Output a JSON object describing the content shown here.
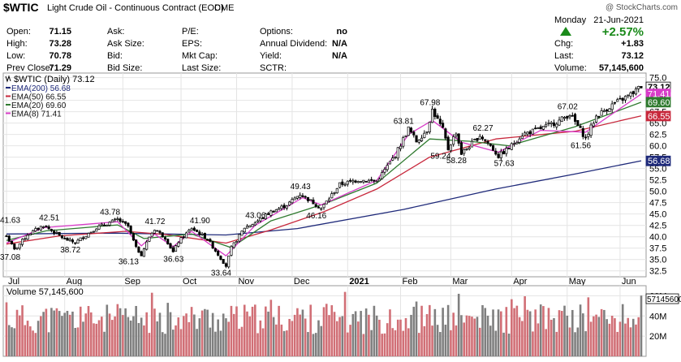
{
  "header": {
    "symbol": "$WTIC",
    "name": "Light Crude Oil - Continuous Contract (EOD)",
    "exchange": "CME",
    "copyright": "@ StockCharts.com",
    "day": "Monday",
    "date": "21-Jun-2021",
    "change_pct": "+2.57%",
    "up_color": "#1a8a1a"
  },
  "quote": {
    "col1": [
      {
        "label": "Open:",
        "value": "71.15"
      },
      {
        "label": "High:",
        "value": "73.28"
      },
      {
        "label": "Low:",
        "value": "70.78"
      },
      {
        "label": "Prev Close:",
        "value": "71.29"
      }
    ],
    "col2": [
      {
        "label": "Ask:",
        "value": ""
      },
      {
        "label": "Ask Size:",
        "value": ""
      },
      {
        "label": "Bid:",
        "value": ""
      },
      {
        "label": "Bid Size:",
        "value": ""
      }
    ],
    "col3": [
      {
        "label": "P/E:",
        "value": ""
      },
      {
        "label": "EPS:",
        "value": ""
      },
      {
        "label": "Mkt Cap:",
        "value": ""
      },
      {
        "label": "Last Size:",
        "value": ""
      }
    ],
    "col4": [
      {
        "label": "Options:",
        "value": "no"
      },
      {
        "label": "Annual Dividend:",
        "value": "N/A"
      },
      {
        "label": "Yield:",
        "value": "N/A"
      },
      {
        "label": "SCTR:",
        "value": ""
      }
    ],
    "right": [
      {
        "label": "Chg:",
        "value": "+1.83"
      },
      {
        "label": "Last:",
        "value": "73.12"
      },
      {
        "label": "Volume:",
        "value": "57,145,600"
      }
    ]
  },
  "chart_data": {
    "type": "candlestick",
    "title": "$WTIC (Daily) 73.12",
    "x_months": [
      "Jul",
      "Aug",
      "Sep",
      "Oct",
      "Nov",
      "Dec",
      "2021",
      "Feb",
      "Mar",
      "Apr",
      "May",
      "Jun"
    ],
    "y_ticks": [
      "75.0",
      "72.5",
      "70.0",
      "67.5",
      "65.0",
      "62.5",
      "60.0",
      "57.5",
      "55.0",
      "52.5",
      "50.0",
      "47.5",
      "45.0",
      "42.5",
      "40.0",
      "37.5",
      "35.0",
      "32.5"
    ],
    "ylim": [
      31.2,
      76.0
    ],
    "legend": [
      {
        "label": "EMA(200) 56.68",
        "color": "#1f2a7a"
      },
      {
        "label": "EMA(50) 66.55",
        "color": "#c8283c"
      },
      {
        "label": "EMA(20) 69.60",
        "color": "#2f7a2f"
      },
      {
        "label": "EMA(8) 71.41",
        "color": "#d83cc8"
      }
    ],
    "right_labels": [
      {
        "value": 73.12,
        "text": "73.12",
        "bg": "#ffffff",
        "fg": "#000000",
        "bold": true
      },
      {
        "value": 71.41,
        "text": "71.41",
        "bg": "#d83cc8",
        "fg": "#ffffff"
      },
      {
        "value": 69.6,
        "text": "69.60",
        "bg": "#2f7a2f",
        "fg": "#ffffff"
      },
      {
        "value": 66.55,
        "text": "66.55",
        "bg": "#c8283c",
        "fg": "#ffffff"
      },
      {
        "value": 56.68,
        "text": "56.68",
        "bg": "#1f2a7a",
        "fg": "#ffffff"
      }
    ],
    "price_keypoints": [
      {
        "t": 0,
        "p": 40.2
      },
      {
        "t": 3,
        "p": 37.1
      },
      {
        "t": 8,
        "p": 40.5
      },
      {
        "t": 14,
        "p": 42.5
      },
      {
        "t": 22,
        "p": 39.5
      },
      {
        "t": 26,
        "p": 38.7
      },
      {
        "t": 34,
        "p": 42.0
      },
      {
        "t": 42,
        "p": 43.8
      },
      {
        "t": 46,
        "p": 42.3
      },
      {
        "t": 49,
        "p": 37.5
      },
      {
        "t": 51,
        "p": 36.1
      },
      {
        "t": 54,
        "p": 40.0
      },
      {
        "t": 56,
        "p": 41.7
      },
      {
        "t": 60,
        "p": 39.8
      },
      {
        "t": 63,
        "p": 36.6
      },
      {
        "t": 65,
        "p": 38.9
      },
      {
        "t": 70,
        "p": 41.9
      },
      {
        "t": 76,
        "p": 39.5
      },
      {
        "t": 80,
        "p": 36.1
      },
      {
        "t": 83,
        "p": 33.6
      },
      {
        "t": 85,
        "p": 37.5
      },
      {
        "t": 90,
        "p": 42.0
      },
      {
        "t": 94,
        "p": 43.1
      },
      {
        "t": 100,
        "p": 45.5
      },
      {
        "t": 106,
        "p": 47.0
      },
      {
        "t": 111,
        "p": 49.4
      },
      {
        "t": 116,
        "p": 47.5
      },
      {
        "t": 119,
        "p": 46.2
      },
      {
        "t": 126,
        "p": 51.5
      },
      {
        "t": 133,
        "p": 52.5
      },
      {
        "t": 140,
        "p": 52.2
      },
      {
        "t": 147,
        "p": 58.0
      },
      {
        "t": 152,
        "p": 63.8
      },
      {
        "t": 155,
        "p": 61.0
      },
      {
        "t": 159,
        "p": 63.5
      },
      {
        "t": 161,
        "p": 67.9
      },
      {
        "t": 165,
        "p": 63.5
      },
      {
        "t": 167,
        "p": 59.3
      },
      {
        "t": 170,
        "p": 63.0
      },
      {
        "t": 172,
        "p": 58.3
      },
      {
        "t": 176,
        "p": 60.5
      },
      {
        "t": 179,
        "p": 62.3
      },
      {
        "t": 183,
        "p": 60.0
      },
      {
        "t": 186,
        "p": 57.7
      },
      {
        "t": 190,
        "p": 59.5
      },
      {
        "t": 195,
        "p": 62.5
      },
      {
        "t": 202,
        "p": 63.8
      },
      {
        "t": 209,
        "p": 65.5
      },
      {
        "t": 213,
        "p": 67.0
      },
      {
        "t": 217,
        "p": 63.5
      },
      {
        "t": 219,
        "p": 61.6
      },
      {
        "t": 223,
        "p": 66.5
      },
      {
        "t": 229,
        "p": 69.0
      },
      {
        "t": 236,
        "p": 71.3
      },
      {
        "t": 240,
        "p": 73.1
      }
    ],
    "ema_lines": [
      {
        "name": "EMA(200)",
        "color": "#1f2a7a",
        "points": [
          [
            0,
            40.6
          ],
          [
            40,
            40.8
          ],
          [
            83,
            40.4
          ],
          [
            110,
            41.8
          ],
          [
            150,
            46.0
          ],
          [
            185,
            50.5
          ],
          [
            215,
            53.8
          ],
          [
            240,
            56.7
          ]
        ]
      },
      {
        "name": "EMA(50)",
        "color": "#c8283c",
        "points": [
          [
            0,
            38.4
          ],
          [
            20,
            40.2
          ],
          [
            45,
            41.2
          ],
          [
            60,
            40.5
          ],
          [
            83,
            38.6
          ],
          [
            100,
            41.5
          ],
          [
            120,
            45.5
          ],
          [
            140,
            50.5
          ],
          [
            160,
            57.5
          ],
          [
            185,
            61.5
          ],
          [
            215,
            63.2
          ],
          [
            240,
            66.6
          ]
        ]
      },
      {
        "name": "EMA(20)",
        "color": "#2f7a2f",
        "points": [
          [
            0,
            39.2
          ],
          [
            15,
            41.3
          ],
          [
            42,
            42.6
          ],
          [
            52,
            39.6
          ],
          [
            70,
            40.6
          ],
          [
            85,
            37.6
          ],
          [
            100,
            43.5
          ],
          [
            120,
            47.2
          ],
          [
            140,
            51.8
          ],
          [
            160,
            61.5
          ],
          [
            175,
            61.0
          ],
          [
            190,
            60.0
          ],
          [
            215,
            64.2
          ],
          [
            240,
            69.6
          ]
        ]
      },
      {
        "name": "EMA(8)",
        "color": "#d83cc8",
        "points": [
          [
            0,
            38.6
          ],
          [
            14,
            42.0
          ],
          [
            42,
            43.3
          ],
          [
            51,
            38.0
          ],
          [
            56,
            40.6
          ],
          [
            63,
            37.8
          ],
          [
            70,
            41.2
          ],
          [
            83,
            35.8
          ],
          [
            94,
            42.5
          ],
          [
            112,
            48.6
          ],
          [
            119,
            47.0
          ],
          [
            140,
            52.4
          ],
          [
            152,
            62.5
          ],
          [
            161,
            65.6
          ],
          [
            172,
            60.8
          ],
          [
            186,
            58.6
          ],
          [
            202,
            63.4
          ],
          [
            219,
            63.0
          ],
          [
            240,
            71.4
          ]
        ]
      }
    ],
    "labels": [
      {
        "text": "41.63",
        "t": -1,
        "p": 42.0
      },
      {
        "text": "37.08",
        "t": 1,
        "p": 37.1
      },
      {
        "text": "42.51",
        "t": 16,
        "p": 42.5
      },
      {
        "text": "38.72",
        "t": 24,
        "p": 38.7
      },
      {
        "text": "43.78",
        "t": 39,
        "p": 43.8
      },
      {
        "text": "36.13",
        "t": 46,
        "p": 36.1
      },
      {
        "text": "41.72",
        "t": 56,
        "p": 41.7
      },
      {
        "text": "36.63",
        "t": 63,
        "p": 36.6
      },
      {
        "text": "41.90",
        "t": 73,
        "p": 41.9
      },
      {
        "text": "33.64",
        "t": 81,
        "p": 33.6
      },
      {
        "text": "43.06",
        "t": 94,
        "p": 43.1
      },
      {
        "text": "49.43",
        "t": 111,
        "p": 49.4
      },
      {
        "text": "46.16",
        "t": 117,
        "p": 46.2
      },
      {
        "text": "63.81",
        "t": 150,
        "p": 63.8
      },
      {
        "text": "67.98",
        "t": 160,
        "p": 67.9
      },
      {
        "text": "59.24",
        "t": 164,
        "p": 59.3
      },
      {
        "text": "62.27",
        "t": 180,
        "p": 62.3
      },
      {
        "text": "58.28",
        "t": 170,
        "p": 58.3
      },
      {
        "text": "57.63",
        "t": 188,
        "p": 57.7
      },
      {
        "text": "67.02",
        "t": 212,
        "p": 67.0
      },
      {
        "text": "61.56",
        "t": 217,
        "p": 61.6
      }
    ],
    "volume": {
      "title": "Volume 57,145,600",
      "last_label": "57145600",
      "y_ticks": [
        "60M",
        "40M",
        "20M"
      ],
      "ylim": [
        0,
        70
      ],
      "up_color": "#d16f76",
      "down_color": "#7f7f7f"
    },
    "n_bars": 241,
    "grid": true
  }
}
